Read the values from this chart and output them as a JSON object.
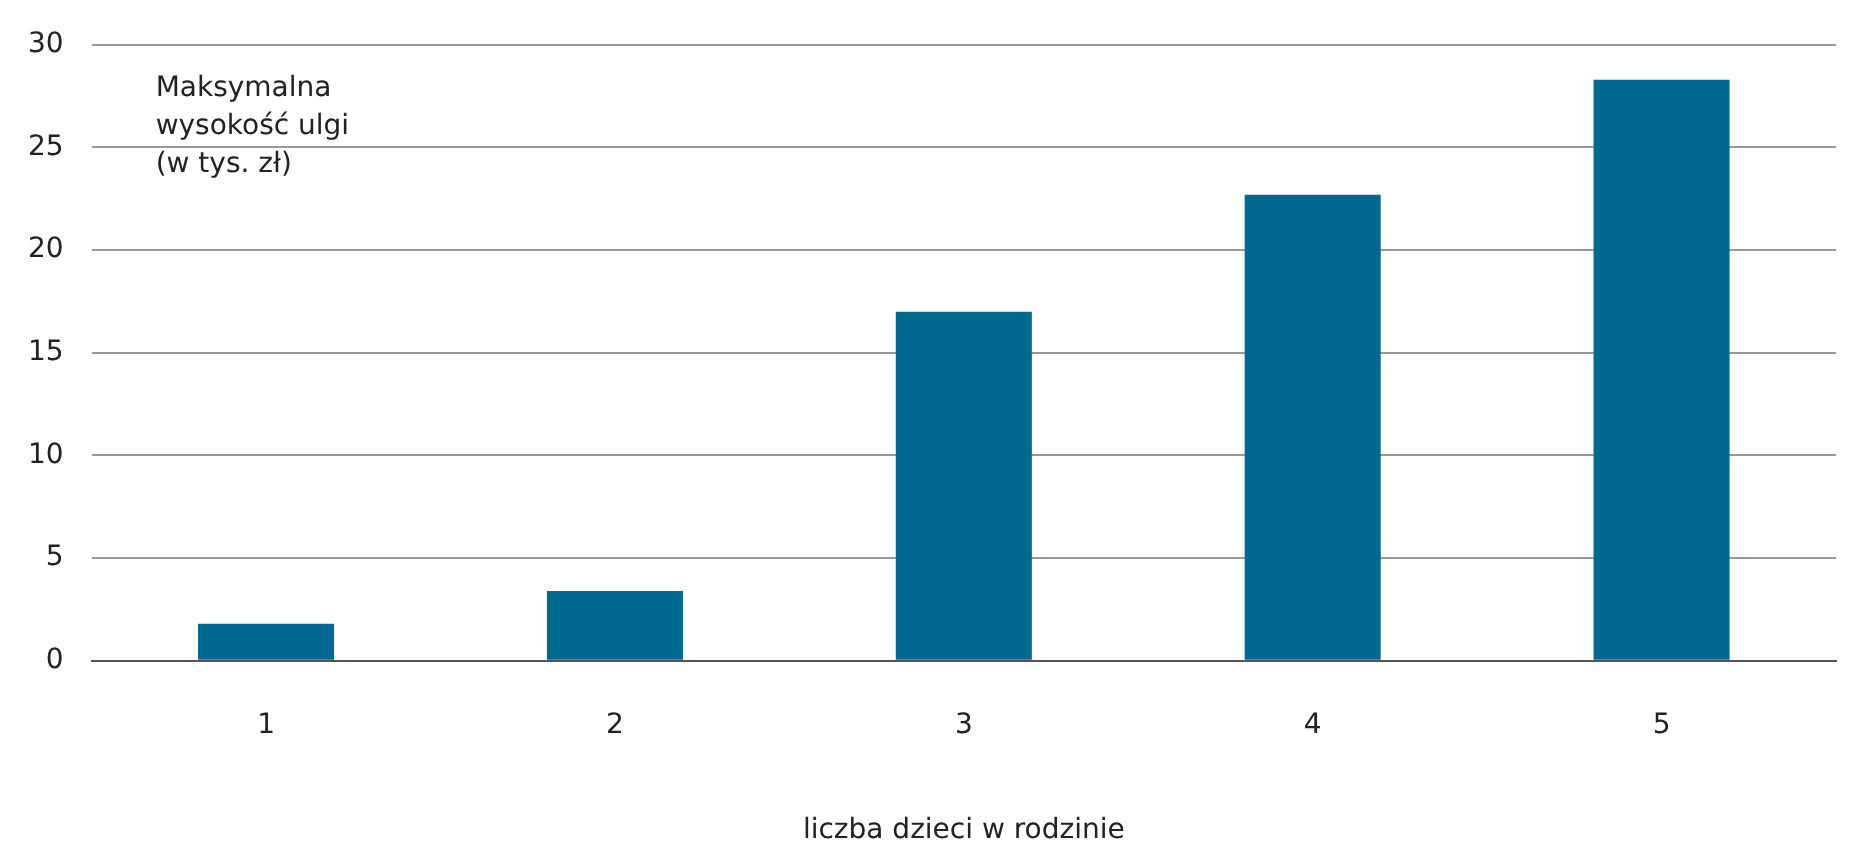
{
  "chart_data": {
    "type": "bar",
    "ylabel": "Maksymalna wysokość ulgi (w tys. zł)",
    "xlabel": "liczba dzieci w rodzinie",
    "categories": [
      "1",
      "2",
      "3",
      "4",
      "5"
    ],
    "values": [
      1.8,
      3.4,
      17.0,
      22.7,
      28.3
    ],
    "color": "#006991",
    "ylim": [
      0,
      30
    ],
    "yticks": [
      0,
      5,
      10,
      15,
      20,
      25,
      30
    ],
    "grid": "y"
  }
}
